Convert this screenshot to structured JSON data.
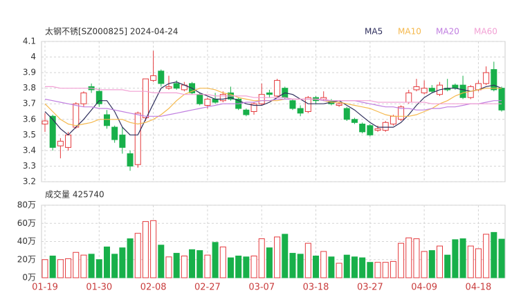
{
  "chart_data": {
    "type": "candlestick",
    "title": "太钢不锈[SZ000825] 2024-04-24",
    "up_color": "#e4393c",
    "down_color": "#18b04a",
    "categories": [
      "01-19",
      null,
      null,
      null,
      null,
      null,
      null,
      "01-30",
      null,
      null,
      null,
      null,
      null,
      null,
      "02-08",
      null,
      null,
      null,
      null,
      null,
      null,
      "02-27",
      null,
      null,
      null,
      null,
      null,
      null,
      "03-07",
      null,
      null,
      null,
      null,
      null,
      null,
      "03-18",
      null,
      null,
      null,
      null,
      null,
      null,
      "03-27",
      null,
      null,
      null,
      null,
      null,
      null,
      "04-09",
      null,
      null,
      null,
      null,
      null,
      null,
      "04-18",
      null,
      null,
      null
    ],
    "open": [
      3.57,
      3.62,
      3.43,
      3.42,
      3.55,
      3.7,
      3.81,
      3.78,
      3.63,
      3.55,
      3.5,
      3.38,
      3.31,
      3.61,
      3.85,
      3.91,
      3.8,
      3.83,
      3.79,
      3.83,
      3.76,
      3.69,
      3.73,
      3.72,
      3.77,
      3.73,
      3.66,
      3.65,
      3.7,
      3.77,
      3.75,
      3.8,
      3.72,
      3.67,
      3.65,
      3.74,
      3.73,
      3.72,
      3.69,
      3.67,
      3.6,
      3.57,
      3.56,
      3.53,
      3.53,
      3.57,
      3.6,
      3.71,
      3.79,
      3.77,
      3.8,
      3.76,
      3.8,
      3.82,
      3.82,
      3.74,
      3.79,
      3.83,
      3.92,
      3.8
    ],
    "high": [
      3.64,
      3.63,
      3.48,
      3.52,
      3.71,
      3.78,
      3.83,
      3.8,
      3.66,
      3.56,
      3.55,
      3.4,
      3.65,
      3.86,
      4.04,
      3.92,
      3.88,
      3.85,
      3.84,
      3.84,
      3.77,
      3.74,
      3.77,
      3.78,
      3.81,
      3.74,
      3.67,
      3.71,
      3.83,
      3.79,
      3.86,
      3.81,
      3.73,
      3.69,
      3.75,
      3.75,
      3.78,
      3.73,
      3.71,
      3.68,
      3.61,
      3.58,
      3.57,
      3.56,
      3.59,
      3.63,
      3.69,
      3.79,
      3.86,
      3.85,
      3.82,
      3.84,
      3.86,
      3.83,
      3.88,
      3.82,
      3.85,
      3.94,
      3.97,
      3.81
    ],
    "low": [
      3.52,
      3.4,
      3.35,
      3.4,
      3.54,
      3.68,
      3.77,
      3.68,
      3.54,
      3.45,
      3.38,
      3.27,
      3.29,
      3.59,
      3.84,
      3.81,
      3.79,
      3.79,
      3.78,
      3.76,
      3.69,
      3.67,
      3.7,
      3.71,
      3.72,
      3.66,
      3.62,
      3.63,
      3.69,
      3.74,
      3.74,
      3.73,
      3.66,
      3.62,
      3.64,
      3.7,
      3.72,
      3.69,
      3.68,
      3.59,
      3.57,
      3.51,
      3.49,
      3.52,
      3.52,
      3.56,
      3.59,
      3.7,
      3.78,
      3.76,
      3.77,
      3.75,
      3.78,
      3.79,
      3.73,
      3.73,
      3.78,
      3.82,
      3.78,
      3.65
    ],
    "close": [
      3.59,
      3.42,
      3.46,
      3.5,
      3.7,
      3.77,
      3.79,
      3.7,
      3.56,
      3.47,
      3.42,
      3.3,
      3.64,
      3.86,
      3.88,
      3.83,
      3.81,
      3.8,
      3.82,
      3.77,
      3.7,
      3.73,
      3.71,
      3.76,
      3.73,
      3.67,
      3.63,
      3.7,
      3.76,
      3.76,
      3.85,
      3.74,
      3.67,
      3.64,
      3.74,
      3.72,
      3.74,
      3.7,
      3.7,
      3.6,
      3.58,
      3.52,
      3.5,
      3.54,
      3.58,
      3.62,
      3.68,
      3.77,
      3.81,
      3.8,
      3.78,
      3.82,
      3.79,
      3.8,
      3.74,
      3.81,
      3.83,
      3.9,
      3.79,
      3.66
    ],
    "ylim": [
      3.2,
      4.1
    ],
    "yticks": [
      3.2,
      3.3,
      3.4,
      3.5,
      3.6,
      3.7,
      3.8,
      3.9,
      4,
      4.1
    ],
    "grid": true,
    "series": [
      {
        "name": "MA5",
        "color": "#2e2e5c",
        "values": [
          3.65,
          3.6,
          3.54,
          3.5,
          3.55,
          3.6,
          3.66,
          3.72,
          3.72,
          3.65,
          3.55,
          3.5,
          3.5,
          3.6,
          3.7,
          3.8,
          3.83,
          3.84,
          3.82,
          3.8,
          3.77,
          3.75,
          3.73,
          3.73,
          3.74,
          3.72,
          3.7,
          3.69,
          3.69,
          3.71,
          3.74,
          3.77,
          3.76,
          3.73,
          3.7,
          3.7,
          3.7,
          3.71,
          3.72,
          3.69,
          3.66,
          3.62,
          3.58,
          3.55,
          3.55,
          3.55,
          3.58,
          3.63,
          3.69,
          3.74,
          3.77,
          3.79,
          3.8,
          3.8,
          3.79,
          3.78,
          3.79,
          3.81,
          3.82,
          3.8
        ]
      },
      {
        "name": "MA10",
        "color": "#f5b84c",
        "values": [
          3.7,
          3.65,
          3.6,
          3.57,
          3.56,
          3.57,
          3.58,
          3.6,
          3.6,
          3.6,
          3.6,
          3.58,
          3.57,
          3.58,
          3.6,
          3.63,
          3.67,
          3.72,
          3.76,
          3.78,
          3.8,
          3.8,
          3.79,
          3.77,
          3.76,
          3.74,
          3.73,
          3.72,
          3.72,
          3.72,
          3.72,
          3.73,
          3.73,
          3.73,
          3.73,
          3.73,
          3.72,
          3.71,
          3.71,
          3.7,
          3.69,
          3.68,
          3.67,
          3.65,
          3.63,
          3.62,
          3.62,
          3.62,
          3.63,
          3.65,
          3.67,
          3.7,
          3.72,
          3.75,
          3.77,
          3.78,
          3.79,
          3.8,
          3.8,
          3.8
        ]
      },
      {
        "name": "MA20",
        "color": "#c07ee0",
        "values": [
          3.73,
          3.72,
          3.71,
          3.7,
          3.69,
          3.68,
          3.68,
          3.67,
          3.67,
          3.66,
          3.65,
          3.64,
          3.63,
          3.62,
          3.62,
          3.62,
          3.63,
          3.64,
          3.65,
          3.66,
          3.67,
          3.68,
          3.69,
          3.7,
          3.7,
          3.7,
          3.71,
          3.71,
          3.72,
          3.72,
          3.73,
          3.73,
          3.73,
          3.73,
          3.73,
          3.73,
          3.72,
          3.72,
          3.72,
          3.72,
          3.72,
          3.71,
          3.7,
          3.69,
          3.68,
          3.68,
          3.67,
          3.67,
          3.66,
          3.66,
          3.67,
          3.67,
          3.68,
          3.68,
          3.69,
          3.7,
          3.7,
          3.71,
          3.72,
          3.72
        ]
      },
      {
        "name": "MA60",
        "color": "#f2a0d4",
        "values": [
          3.81,
          3.81,
          3.8,
          3.8,
          3.8,
          3.8,
          3.8,
          3.79,
          3.79,
          3.79,
          3.79,
          3.78,
          3.78,
          3.78,
          3.77,
          3.77,
          3.77,
          3.77,
          3.76,
          3.76,
          3.76,
          3.76,
          3.75,
          3.75,
          3.75,
          3.75,
          3.75,
          3.74,
          3.74,
          3.74,
          3.74,
          3.74,
          3.73,
          3.73,
          3.73,
          3.73,
          3.73,
          3.72,
          3.72,
          3.72,
          3.72,
          3.72,
          3.72,
          3.71,
          3.71,
          3.71,
          3.71,
          3.71,
          3.71,
          3.71,
          3.7,
          3.7,
          3.7,
          3.7,
          3.7,
          3.7,
          3.7,
          3.7,
          3.7,
          3.7
        ]
      }
    ],
    "volume": {
      "label": "成交量 425740",
      "values": [
        20,
        24,
        20,
        21,
        28,
        25,
        26,
        20,
        34,
        26,
        33,
        43,
        49,
        62,
        63,
        36,
        23,
        27,
        24,
        31,
        30,
        25,
        39,
        34,
        22,
        24,
        23,
        24,
        43,
        33,
        45,
        48,
        27,
        26,
        38,
        24,
        29,
        23,
        16,
        25,
        23,
        22,
        17,
        17,
        17,
        18,
        38,
        44,
        43,
        29,
        30,
        35,
        25,
        42,
        43,
        35,
        32,
        48,
        50,
        42.574
      ],
      "ylim": [
        0,
        80
      ],
      "yticks": [
        {
          "value": 0,
          "label": "0万"
        },
        {
          "value": 20,
          "label": "20万"
        },
        {
          "value": 40,
          "label": "40万"
        },
        {
          "value": 60,
          "label": "60万"
        },
        {
          "value": 80,
          "label": "80万"
        }
      ]
    }
  }
}
